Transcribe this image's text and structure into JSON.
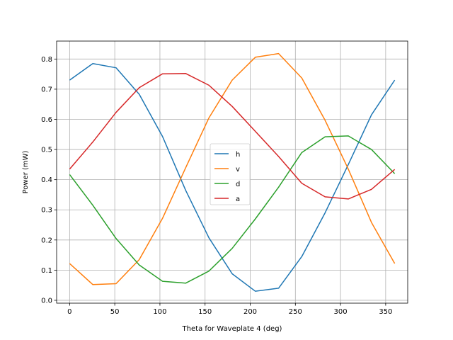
{
  "chart_data": {
    "type": "line",
    "title": "",
    "xlabel": "Theta for Waveplate 4 (deg)",
    "ylabel": "Power (mW)",
    "xlim": [
      -14.4,
      374.4
    ],
    "ylim": [
      -0.0095,
      0.8595
    ],
    "xticks": [
      0,
      50,
      100,
      150,
      200,
      250,
      300,
      350
    ],
    "yticks": [
      0.0,
      0.1,
      0.2,
      0.3,
      0.4,
      0.5,
      0.6,
      0.7,
      0.8
    ],
    "grid": true,
    "legend_position": "center",
    "x": [
      0,
      25.7,
      51.4,
      77.1,
      102.9,
      128.6,
      154.3,
      180,
      205.7,
      231.4,
      257.1,
      282.9,
      308.6,
      334.3,
      360
    ],
    "series": [
      {
        "name": "h",
        "color": "#1f77b4",
        "values": [
          0.73,
          0.785,
          0.771,
          0.683,
          0.543,
          0.364,
          0.207,
          0.088,
          0.03,
          0.04,
          0.145,
          0.29,
          0.45,
          0.615,
          0.73
        ]
      },
      {
        "name": "v",
        "color": "#ff7f0e",
        "values": [
          0.122,
          0.052,
          0.055,
          0.135,
          0.272,
          0.44,
          0.605,
          0.73,
          0.806,
          0.818,
          0.737,
          0.597,
          0.435,
          0.258,
          0.122
        ]
      },
      {
        "name": "d",
        "color": "#2ca02c",
        "values": [
          0.417,
          0.315,
          0.205,
          0.117,
          0.063,
          0.057,
          0.097,
          0.172,
          0.27,
          0.375,
          0.49,
          0.542,
          0.545,
          0.5,
          0.42
        ]
      },
      {
        "name": "a",
        "color": "#d62728",
        "values": [
          0.435,
          0.525,
          0.623,
          0.705,
          0.751,
          0.752,
          0.713,
          0.643,
          0.56,
          0.477,
          0.388,
          0.343,
          0.336,
          0.368,
          0.434
        ]
      }
    ]
  }
}
